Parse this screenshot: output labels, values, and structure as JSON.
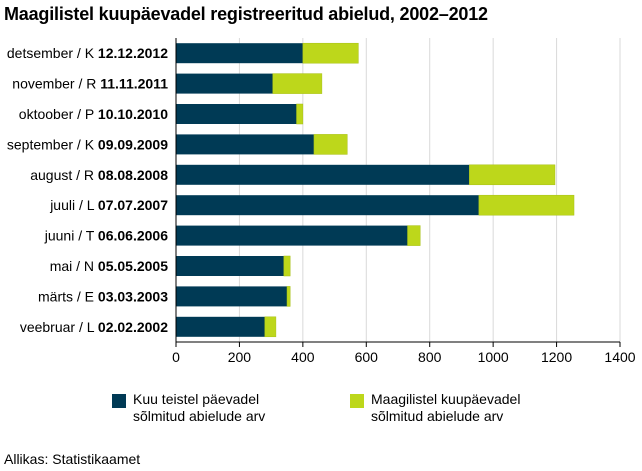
{
  "title": "Maagilistel kuupäevadel registreeritud abielud, 2002–2012",
  "source": "Allikas: Statistikaamet",
  "colors": {
    "base": "#003A55",
    "magic": "#BDD71B",
    "grid": "#d9d9d9",
    "axis": "#000000"
  },
  "chart_data": {
    "type": "bar",
    "orientation": "horizontal",
    "stacked": true,
    "categories": [
      {
        "prefix": "detsember / K ",
        "date": "12.12.2012"
      },
      {
        "prefix": "november / R ",
        "date": "11.11.2011"
      },
      {
        "prefix": "oktoober / P ",
        "date": "10.10.2010"
      },
      {
        "prefix": "september / K ",
        "date": "09.09.2009"
      },
      {
        "prefix": "august / R ",
        "date": "08.08.2008"
      },
      {
        "prefix": "juuli / L ",
        "date": "07.07.2007"
      },
      {
        "prefix": "juuni / T ",
        "date": "06.06.2006"
      },
      {
        "prefix": "mai / N ",
        "date": "05.05.2005"
      },
      {
        "prefix": "märts / E ",
        "date": "03.03.2003"
      },
      {
        "prefix": "veebruar / L ",
        "date": "02.02.2002"
      }
    ],
    "series": [
      {
        "name": "Kuu teistel päevadel sõlmitud abielude arv",
        "legend_lines": [
          "Kuu teistel päevadel",
          "sõlmitud abielude arv"
        ],
        "color": "#003A55",
        "values": [
          400,
          305,
          380,
          435,
          925,
          955,
          730,
          340,
          350,
          280
        ]
      },
      {
        "name": "Maagilistel kuupäevadel sõlmitud abielude arv",
        "legend_lines": [
          "Maagilistel kuupäevadel",
          "sõlmitud abielude arv"
        ],
        "color": "#BDD71B",
        "values": [
          175,
          155,
          20,
          105,
          270,
          300,
          40,
          20,
          10,
          35
        ]
      }
    ],
    "xlim": [
      0,
      1400
    ],
    "xticks": [
      0,
      200,
      400,
      600,
      800,
      1000,
      1200,
      1400
    ],
    "grid": true,
    "legend_position": "bottom"
  }
}
